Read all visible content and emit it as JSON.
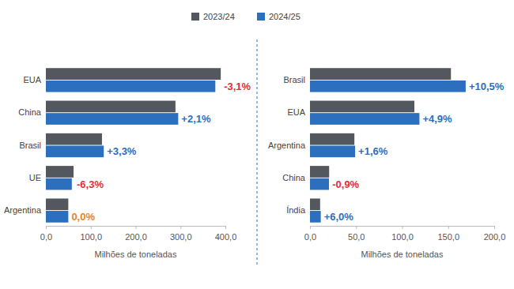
{
  "chart_data": [
    {
      "type": "bar",
      "orientation": "horizontal",
      "legend": "top",
      "categories": [
        "EUA",
        "China",
        "Brasil",
        "UE",
        "Argentina"
      ],
      "series": [
        {
          "name": "2023/24",
          "color": "#53575e",
          "values": [
            389.7,
            288.8,
            125.0,
            61.7,
            50.0
          ]
        },
        {
          "name": "2024/25",
          "color": "#2b6fbe",
          "values": [
            377.6,
            294.9,
            129.0,
            57.8,
            50.0
          ]
        }
      ],
      "x_label": "Milhões de toneladas",
      "xlim": [
        0,
        400
      ],
      "xticks": [
        {
          "value": 0,
          "label": "0,0"
        },
        {
          "value": 100,
          "label": "100,0"
        },
        {
          "value": 200,
          "label": "200,0"
        },
        {
          "value": 300,
          "label": "300,0"
        },
        {
          "value": 400,
          "label": "400,0"
        }
      ],
      "annotations": [
        {
          "text": "-3,1%",
          "color": "#e0303a"
        },
        {
          "text": "+2,1%",
          "color": "#2b6fbe"
        },
        {
          "text": "+3,3%",
          "color": "#2b6fbe"
        },
        {
          "text": "-6,3%",
          "color": "#e0303a"
        },
        {
          "text": "0,0%",
          "color": "#e8832a"
        }
      ]
    },
    {
      "type": "bar",
      "orientation": "horizontal",
      "legend": false,
      "categories": [
        "Brasil",
        "EUA",
        "Argentina",
        "China",
        "Índia"
      ],
      "series": [
        {
          "name": "2023/24",
          "color": "#53575e",
          "values": [
            153.0,
            113.3,
            48.2,
            20.8,
            11.0
          ]
        },
        {
          "name": "2024/25",
          "color": "#2b6fbe",
          "values": [
            169.0,
            118.8,
            49.0,
            20.6,
            11.7
          ]
        }
      ],
      "x_label": "Milhões de toneladas",
      "xlim": [
        0,
        200
      ],
      "xticks": [
        {
          "value": 0,
          "label": "0,0"
        },
        {
          "value": 50,
          "label": "50,0"
        },
        {
          "value": 100,
          "label": "100,0"
        },
        {
          "value": 150,
          "label": "150,0"
        },
        {
          "value": 200,
          "label": "200,0"
        }
      ],
      "annotations": [
        {
          "text": "+10,5%",
          "color": "#2b6fbe"
        },
        {
          "text": "+4,9%",
          "color": "#2b6fbe"
        },
        {
          "text": "+1,6%",
          "color": "#2b6fbe"
        },
        {
          "text": "-0,9%",
          "color": "#e0303a"
        },
        {
          "text": "+6,0%",
          "color": "#2b6fbe"
        }
      ]
    }
  ]
}
